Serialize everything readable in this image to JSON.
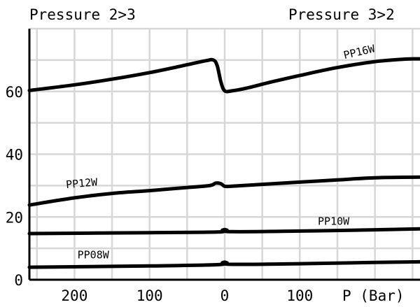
{
  "chart_data": {
    "type": "line",
    "header_left": "Pressure 2>3",
    "header_right": "Pressure 3>2",
    "xlabel": "P (Bar)",
    "ylabel": "",
    "x_tick_labels": [
      {
        "value": -200,
        "label": "200"
      },
      {
        "value": -100,
        "label": "100"
      },
      {
        "value": 0,
        "label": "0"
      },
      {
        "value": 100,
        "label": "100"
      }
    ],
    "y_ticks": [
      0,
      20,
      40,
      60
    ],
    "xlim": [
      -260,
      260
    ],
    "ylim": [
      0,
      80
    ],
    "grid": true,
    "series": [
      {
        "name": "PP16W",
        "points": [
          [
            -260,
            60.3
          ],
          [
            -200,
            62.1
          ],
          [
            -150,
            63.9
          ],
          [
            -100,
            66.0
          ],
          [
            -50,
            68.5
          ],
          [
            -25,
            69.8
          ],
          [
            -15,
            70.0
          ],
          [
            -10,
            68.2
          ],
          [
            -5,
            63.0
          ],
          [
            0,
            60.2
          ],
          [
            10,
            60.2
          ],
          [
            30,
            61.1
          ],
          [
            60,
            62.9
          ],
          [
            100,
            65.1
          ],
          [
            150,
            67.6
          ],
          [
            200,
            69.5
          ],
          [
            240,
            70.3
          ],
          [
            260,
            70.4
          ]
        ]
      },
      {
        "name": "PP12W",
        "points": [
          [
            -260,
            23.8
          ],
          [
            -200,
            26.1
          ],
          [
            -150,
            27.5
          ],
          [
            -100,
            28.4
          ],
          [
            -50,
            29.4
          ],
          [
            -20,
            30.0
          ],
          [
            -12,
            30.8
          ],
          [
            -5,
            30.6
          ],
          [
            0,
            29.8
          ],
          [
            10,
            29.8
          ],
          [
            50,
            30.4
          ],
          [
            100,
            31.1
          ],
          [
            150,
            31.8
          ],
          [
            200,
            32.5
          ],
          [
            260,
            32.7
          ]
        ]
      },
      {
        "name": "PP10W",
        "points": [
          [
            -260,
            14.7
          ],
          [
            -100,
            15.0
          ],
          [
            -10,
            15.2
          ],
          [
            -3,
            15.8
          ],
          [
            0,
            16.0
          ],
          [
            3,
            15.8
          ],
          [
            10,
            15.3
          ],
          [
            100,
            15.5
          ],
          [
            200,
            15.9
          ],
          [
            260,
            16.2
          ]
        ]
      },
      {
        "name": "PP08W",
        "points": [
          [
            -260,
            4.0
          ],
          [
            -100,
            4.4
          ],
          [
            -10,
            4.8
          ],
          [
            -3,
            5.4
          ],
          [
            0,
            5.6
          ],
          [
            3,
            5.4
          ],
          [
            10,
            4.9
          ],
          [
            100,
            5.1
          ],
          [
            200,
            5.5
          ],
          [
            260,
            5.7
          ]
        ]
      }
    ],
    "series_labels": [
      {
        "text": "PP16W",
        "x": 180,
        "y": 71.5,
        "rotate": -13
      },
      {
        "text": "PP12W",
        "x": -190,
        "y": 29.6,
        "rotate": -5
      },
      {
        "text": "PP10W",
        "x": 145,
        "y": 17.5,
        "rotate": 0
      },
      {
        "text": "PP08W",
        "x": -175,
        "y": 6.8,
        "rotate": 0
      }
    ]
  }
}
